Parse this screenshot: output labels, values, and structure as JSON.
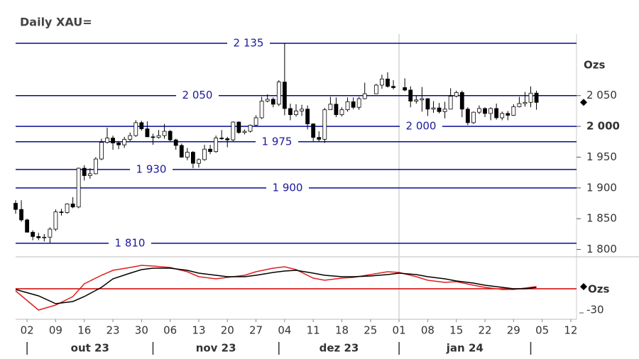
{
  "chart_data": [
    {
      "type": "candlestick",
      "title": "Daily XAU=",
      "y_unit": "Ozs",
      "x": [
        "2023-09-28",
        "2023-09-29",
        "2023-10-02",
        "2023-10-03",
        "2023-10-04",
        "2023-10-05",
        "2023-10-06",
        "2023-10-09",
        "2023-10-10",
        "2023-10-11",
        "2023-10-12",
        "2023-10-13",
        "2023-10-16",
        "2023-10-17",
        "2023-10-18",
        "2023-10-19",
        "2023-10-20",
        "2023-10-23",
        "2023-10-24",
        "2023-10-25",
        "2023-10-26",
        "2023-10-27",
        "2023-10-30",
        "2023-10-31",
        "2023-11-01",
        "2023-11-02",
        "2023-11-03",
        "2023-11-06",
        "2023-11-07",
        "2023-11-08",
        "2023-11-09",
        "2023-11-10",
        "2023-11-13",
        "2023-11-14",
        "2023-11-15",
        "2023-11-16",
        "2023-11-17",
        "2023-11-20",
        "2023-11-21",
        "2023-11-22",
        "2023-11-23",
        "2023-11-24",
        "2023-11-27",
        "2023-11-28",
        "2023-11-29",
        "2023-11-30",
        "2023-12-01",
        "2023-12-04",
        "2023-12-05",
        "2023-12-06",
        "2023-12-07",
        "2023-12-08",
        "2023-12-11",
        "2023-12-12",
        "2023-12-13",
        "2023-12-14",
        "2023-12-15",
        "2023-12-18",
        "2023-12-19",
        "2023-12-20",
        "2023-12-21",
        "2023-12-22",
        "2023-12-26",
        "2023-12-27",
        "2023-12-28",
        "2023-12-29",
        "2024-01-02",
        "2024-01-03",
        "2024-01-04",
        "2024-01-05",
        "2024-01-08",
        "2024-01-09",
        "2024-01-10",
        "2024-01-11",
        "2024-01-12",
        "2024-01-15",
        "2024-01-16",
        "2024-01-17",
        "2024-01-18",
        "2024-01-19",
        "2024-01-22",
        "2024-01-23",
        "2024-01-24",
        "2024-01-25",
        "2024-01-26",
        "2024-01-29",
        "2024-01-30",
        "2024-01-31",
        "2024-02-01",
        "2024-02-02"
      ],
      "open": [
        1875,
        1865,
        1848,
        1828,
        1821,
        1819,
        1820,
        1833,
        1861,
        1860,
        1874,
        1869,
        1932,
        1920,
        1923,
        1947,
        1974,
        1981,
        1973,
        1970,
        1979,
        1985,
        2006,
        1996,
        1983,
        1982,
        1985,
        1992,
        1978,
        1969,
        1950,
        1958,
        1940,
        1946,
        1963,
        1959,
        1981,
        1980,
        1978,
        2007,
        1990,
        1992,
        2002,
        2014,
        2041,
        2044,
        2036,
        2072,
        2029,
        2019,
        2025,
        2028,
        2004,
        1982,
        1979,
        2027,
        2036,
        2019,
        2027,
        2040,
        2031,
        2045,
        2053,
        2067,
        2077,
        2065,
        2063,
        2059,
        2041,
        2043,
        2045,
        2028,
        2030,
        2024,
        2028,
        2049,
        2055,
        2028,
        2006,
        2023,
        2029,
        2021,
        2029,
        2014,
        2021,
        2018,
        2032,
        2037,
        2039,
        2054
      ],
      "high": [
        1880,
        1880,
        1850,
        1831,
        1827,
        1825,
        1836,
        1865,
        1866,
        1875,
        1885,
        1933,
        1937,
        1932,
        1950,
        1980,
        1998,
        1985,
        1976,
        1983,
        1990,
        2010,
        2009,
        2008,
        1988,
        1994,
        2004,
        1994,
        1980,
        1972,
        1965,
        1960,
        1948,
        1970,
        1970,
        1985,
        1994,
        1983,
        2008,
        2008,
        1995,
        2003,
        2018,
        2048,
        2052,
        2047,
        2075,
        2135,
        2037,
        2036,
        2035,
        2034,
        2005,
        1992,
        2030,
        2048,
        2047,
        2031,
        2047,
        2047,
        2048,
        2071,
        2069,
        2084,
        2088,
        2075,
        2078,
        2065,
        2050,
        2064,
        2046,
        2041,
        2038,
        2040,
        2062,
        2058,
        2058,
        2031,
        2024,
        2034,
        2031,
        2031,
        2037,
        2024,
        2025,
        2036,
        2048,
        2056,
        2065,
        2058
      ],
      "low": [
        1858,
        1845,
        1828,
        1815,
        1815,
        1813,
        1810,
        1830,
        1855,
        1858,
        1867,
        1867,
        1912,
        1915,
        1922,
        1945,
        1972,
        1962,
        1963,
        1965,
        1976,
        1983,
        1993,
        1983,
        1970,
        1980,
        1980,
        1975,
        1962,
        1949,
        1945,
        1932,
        1933,
        1944,
        1955,
        1957,
        1978,
        1966,
        1976,
        1988,
        1987,
        1990,
        2000,
        2012,
        2039,
        2031,
        2033,
        2018,
        2010,
        2016,
        2017,
        1995,
        1976,
        1975,
        1973,
        2027,
        2015,
        2016,
        2024,
        2028,
        2027,
        2044,
        2053,
        2061,
        2063,
        2060,
        2057,
        2031,
        2037,
        2024,
        2017,
        2022,
        2021,
        2013,
        2028,
        2047,
        2015,
        2002,
        2004,
        2020,
        2015,
        2010,
        2011,
        2010,
        2010,
        2017,
        2031,
        2032,
        2031,
        2027
      ],
      "close": [
        1865,
        1848,
        1828,
        1821,
        1819,
        1820,
        1833,
        1861,
        1860,
        1874,
        1869,
        1932,
        1920,
        1923,
        1947,
        1974,
        1981,
        1973,
        1970,
        1979,
        1985,
        2006,
        1996,
        1983,
        1982,
        1985,
        1992,
        1978,
        1969,
        1950,
        1958,
        1940,
        1946,
        1963,
        1959,
        1981,
        1980,
        1978,
        2007,
        1990,
        1992,
        2002,
        2014,
        2041,
        2044,
        2036,
        2072,
        2029,
        2019,
        2025,
        2028,
        2004,
        1982,
        1979,
        2027,
        2036,
        2019,
        2027,
        2040,
        2031,
        2045,
        2053,
        2067,
        2077,
        2065,
        2063,
        2059,
        2041,
        2043,
        2045,
        2028,
        2030,
        2024,
        2028,
        2049,
        2055,
        2028,
        2006,
        2023,
        2029,
        2021,
        2029,
        2014,
        2021,
        2018,
        2032,
        2037,
        2039,
        2054,
        2039
      ],
      "up_color": "#ffffff",
      "down_color": "#000000",
      "xlim": [
        "2023-09-28",
        "2024-02-13"
      ],
      "ylim": [
        1788,
        2150
      ],
      "yticks": [
        {
          "value": 1800,
          "label": "1 800"
        },
        {
          "value": 1850,
          "label": "1 850"
        },
        {
          "value": 1900,
          "label": "1 900"
        },
        {
          "value": 1950,
          "label": "1 950"
        },
        {
          "value": 2000,
          "label": "2 000",
          "bold": true
        },
        {
          "value": 2050,
          "label": "2 050"
        }
      ],
      "levels": [
        {
          "value": 2135,
          "label": "2 135"
        },
        {
          "value": 2050,
          "label": "2 050"
        },
        {
          "value": 2000,
          "label": "2 000"
        },
        {
          "value": 1975,
          "label": "1 975"
        },
        {
          "value": 1930,
          "label": "1 930"
        },
        {
          "value": 1900,
          "label": "1 900"
        },
        {
          "value": 1810,
          "label": "1 810"
        }
      ],
      "level_color": "#0a0a96",
      "year_line": "2024-01-01",
      "xticks": [
        {
          "value": "2023-10-02",
          "label": "02"
        },
        {
          "value": "2023-10-09",
          "label": "09"
        },
        {
          "value": "2023-10-16",
          "label": "16"
        },
        {
          "value": "2023-10-23",
          "label": "23"
        },
        {
          "value": "2023-10-30",
          "label": "30"
        },
        {
          "value": "2023-11-06",
          "label": "06"
        },
        {
          "value": "2023-11-13",
          "label": "13"
        },
        {
          "value": "2023-11-20",
          "label": "20"
        },
        {
          "value": "2023-11-27",
          "label": "27"
        },
        {
          "value": "2023-12-04",
          "label": "04"
        },
        {
          "value": "2023-12-11",
          "label": "11"
        },
        {
          "value": "2023-12-18",
          "label": "18"
        },
        {
          "value": "2023-12-25",
          "label": "25"
        },
        {
          "value": "2024-01-01",
          "label": "01"
        },
        {
          "value": "2024-01-08",
          "label": "08"
        },
        {
          "value": "2024-01-15",
          "label": "15"
        },
        {
          "value": "2024-01-22",
          "label": "22"
        },
        {
          "value": "2024-01-29",
          "label": "29"
        },
        {
          "value": "2024-02-05",
          "label": "05"
        },
        {
          "value": "2024-02-12",
          "label": "12"
        }
      ],
      "months": [
        {
          "value": "2023-10",
          "label": "out 23"
        },
        {
          "value": "2023-11",
          "label": "nov 23"
        },
        {
          "value": "2023-12",
          "label": "dez 23"
        },
        {
          "value": "2024-01",
          "label": "jan 24"
        }
      ]
    },
    {
      "type": "line",
      "y_unit": "Ozs",
      "x": [
        "2023-09-28",
        "2023-10-04",
        "2023-10-09",
        "2023-10-12",
        "2023-10-16",
        "2023-10-19",
        "2023-10-23",
        "2023-10-26",
        "2023-10-30",
        "2023-11-01",
        "2023-11-06",
        "2023-11-09",
        "2023-11-13",
        "2023-11-16",
        "2023-11-20",
        "2023-11-23",
        "2023-11-27",
        "2023-11-30",
        "2023-12-04",
        "2023-12-06",
        "2023-12-11",
        "2023-12-13",
        "2023-12-18",
        "2023-12-20",
        "2023-12-25",
        "2023-12-28",
        "2024-01-01",
        "2024-01-04",
        "2024-01-08",
        "2024-01-11",
        "2024-01-15",
        "2024-01-18",
        "2024-01-22",
        "2024-01-25",
        "2024-01-29",
        "2024-01-31",
        "2024-02-02"
      ],
      "series": [
        {
          "color": "#e02020",
          "values": [
            -3,
            -30,
            -23,
            -11,
            7,
            19,
            26,
            30,
            33,
            32,
            30,
            24,
            17,
            14,
            16,
            19,
            24,
            29,
            31,
            27,
            15,
            12,
            15,
            16,
            20,
            24,
            23,
            17,
            12,
            9,
            10,
            5,
            2,
            -1,
            -1,
            1,
            3
          ]
        },
        {
          "color": "#000000",
          "values": [
            -1,
            -10,
            -21,
            -18,
            -11,
            2,
            14,
            22,
            27,
            29,
            29,
            26,
            22,
            19,
            17,
            17,
            19,
            23,
            25,
            26,
            22,
            19,
            17,
            17,
            18,
            20,
            22,
            20,
            17,
            14,
            11,
            8,
            5,
            2,
            0,
            0,
            2
          ]
        }
      ],
      "xlim": [
        "2023-09-28",
        "2024-02-13"
      ],
      "ylim": [
        -43,
        42
      ],
      "yticks": [
        -30
      ],
      "zero_line_color": "#cc0000"
    }
  ]
}
